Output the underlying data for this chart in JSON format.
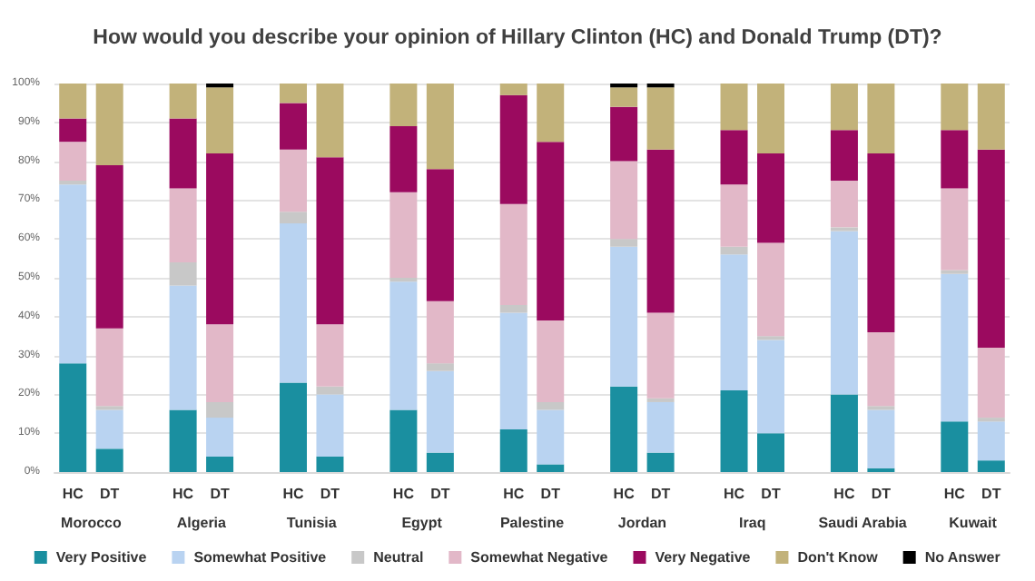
{
  "chart_data": {
    "type": "bar",
    "stacked": true,
    "title": "How would you describe your opinion of Hillary Clinton (HC) and Donald Trump (DT)?",
    "categories": [
      "HC",
      "DT",
      null,
      "HC",
      "DT",
      null,
      "HC",
      "DT",
      null,
      "HC",
      "DT",
      null,
      "HC",
      "DT",
      null,
      "HC",
      "DT",
      null,
      "HC",
      "DT",
      null,
      "HC",
      "DT",
      null,
      "HC",
      "DT"
    ],
    "series": [
      {
        "name": "Very Positive",
        "color": "#1a8fa0",
        "values": [
          28,
          6,
          null,
          16,
          4,
          null,
          23,
          4,
          null,
          16,
          5,
          null,
          11,
          2,
          null,
          22,
          5,
          null,
          21,
          10,
          null,
          20,
          1,
          null,
          13,
          3
        ]
      },
      {
        "name": "Somewhat Positive",
        "color": "#b9d3f1",
        "values": [
          46,
          10,
          null,
          32,
          10,
          null,
          41,
          16,
          null,
          33,
          21,
          null,
          30,
          14,
          null,
          36,
          13,
          null,
          35,
          24,
          null,
          42,
          15,
          null,
          38,
          10
        ]
      },
      {
        "name": "Neutral",
        "color": "#c8c8c8",
        "values": [
          1,
          1,
          null,
          6,
          4,
          null,
          3,
          2,
          null,
          1,
          2,
          null,
          2,
          2,
          null,
          2,
          1,
          null,
          2,
          1,
          null,
          1,
          1,
          null,
          1,
          1
        ]
      },
      {
        "name": "Somewhat Negative",
        "color": "#e2b8c8",
        "values": [
          10,
          20,
          null,
          19,
          20,
          null,
          16,
          16,
          null,
          22,
          16,
          null,
          26,
          21,
          null,
          20,
          22,
          null,
          16,
          24,
          null,
          12,
          19,
          null,
          21,
          18
        ]
      },
      {
        "name": "Very Negative",
        "color": "#9b0a5f",
        "values": [
          6,
          42,
          null,
          18,
          44,
          null,
          12,
          43,
          null,
          17,
          34,
          null,
          28,
          46,
          null,
          14,
          42,
          null,
          14,
          23,
          null,
          13,
          46,
          null,
          15,
          51
        ]
      },
      {
        "name": "Don't Know",
        "color": "#c2b27a",
        "values": [
          9,
          21,
          null,
          9,
          17,
          null,
          5,
          19,
          null,
          11,
          22,
          null,
          3,
          15,
          null,
          5,
          16,
          null,
          12,
          18,
          null,
          12,
          18,
          null,
          12,
          17
        ]
      },
      {
        "name": "No Answer",
        "color": "#000000",
        "values": [
          0,
          0,
          null,
          0,
          1,
          null,
          0,
          0,
          null,
          0,
          0,
          null,
          0,
          0,
          null,
          1,
          1,
          null,
          0,
          0,
          null,
          0,
          0,
          null,
          0,
          0
        ]
      }
    ],
    "ylim": [
      0,
      100
    ],
    "yticks": [
      {
        "value": 0,
        "label": "0%"
      },
      {
        "value": 10,
        "label": "10%"
      },
      {
        "value": 20,
        "label": "20%"
      },
      {
        "value": 30,
        "label": "30%"
      },
      {
        "value": 40,
        "label": "40%"
      },
      {
        "value": 50,
        "label": "50%"
      },
      {
        "value": 60,
        "label": "60%"
      },
      {
        "value": 70,
        "label": "70%"
      },
      {
        "value": 80,
        "label": "80%"
      },
      {
        "value": 90,
        "label": "90%"
      },
      {
        "value": 100,
        "label": "100%"
      }
    ],
    "grid": "y",
    "legend": "bottom",
    "annotations": [
      "Morocco",
      "Algeria",
      "Tunisia",
      "Egypt",
      "Palestine",
      "Jordan",
      "Iraq",
      "Saudi Arabia",
      "Kuwait"
    ]
  }
}
